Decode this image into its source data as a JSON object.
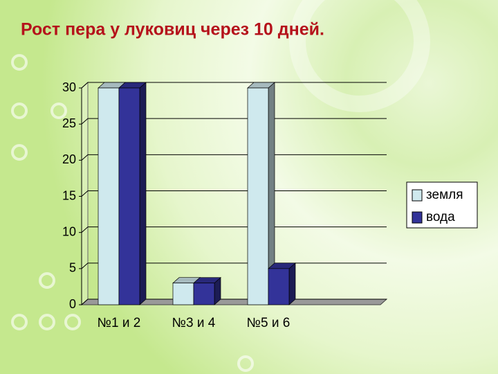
{
  "chart_data": {
    "type": "bar3d",
    "title": "Рост пера у луковиц через 10 дней.",
    "categories": [
      "№1 и 2",
      "№3 и 4",
      "№5 и 6",
      null
    ],
    "series": [
      {
        "name": "земля",
        "color": "#cfe9ee",
        "values": [
          30,
          3,
          30,
          null
        ]
      },
      {
        "name": "вода",
        "color": "#333399",
        "values": [
          30,
          3,
          5,
          null
        ]
      }
    ],
    "ylim": [
      0,
      30
    ],
    "yticks": [
      0,
      5,
      10,
      15,
      20,
      25,
      30
    ],
    "grid": true,
    "legend": "right"
  }
}
